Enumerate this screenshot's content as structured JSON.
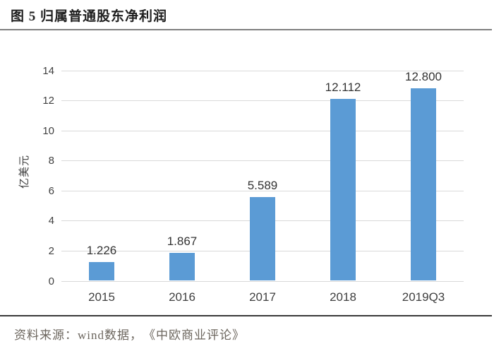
{
  "page": {
    "title": "图 5 归属普通股东净利润",
    "source": "资料来源：wind数据，　《中欧商业评论》"
  },
  "chart_data": {
    "type": "bar",
    "title": "图 5 归属普通股东净利润",
    "categories": [
      "2015",
      "2016",
      "2017",
      "2018",
      "2019Q3"
    ],
    "values": [
      1.226,
      1.867,
      5.589,
      12.112,
      12.8
    ],
    "value_labels": [
      "1.226",
      "1.867",
      "5.589",
      "12.112",
      "12.800"
    ],
    "xlabel": "",
    "ylabel": "亿美元",
    "ylim": [
      0,
      14
    ],
    "yticks": [
      0,
      2,
      4,
      6,
      8,
      10,
      12,
      14
    ],
    "grid": "horizontal",
    "legend": "none",
    "bar_color": "#5b9bd5",
    "grid_color": "#d9d9d9",
    "tick_label_color": "#404040",
    "value_label_color": "#333333"
  }
}
